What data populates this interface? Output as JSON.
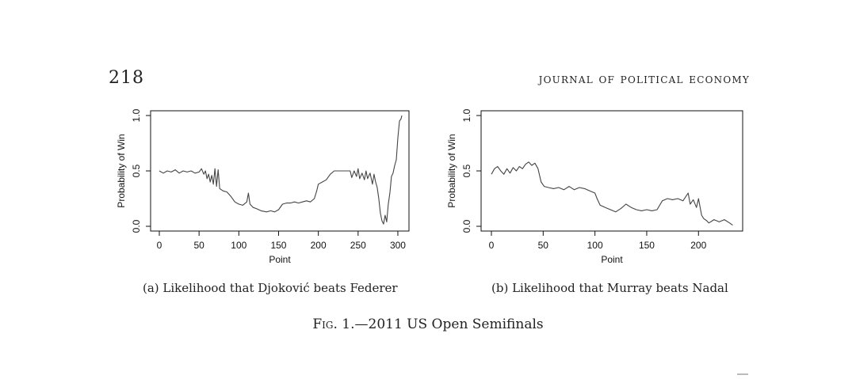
{
  "header": {
    "page_number": "218",
    "journal": "JOURNAL OF POLITICAL ECONOMY"
  },
  "figure": {
    "prefix": "Fig.",
    "suffix": " 1.—2011 US Open Semifinals"
  },
  "chart_data": [
    {
      "type": "line",
      "caption": "(a) Likelihood that Djoković beats Federer",
      "xlabel": "Point",
      "ylabel": "Probability of Win",
      "xlim": [
        0,
        310
      ],
      "ylim": [
        0,
        1
      ],
      "xticks": [
        0,
        50,
        100,
        150,
        200,
        250,
        300
      ],
      "yticks": [
        0.0,
        0.5,
        1.0
      ],
      "xtick_labels": [
        "0",
        "50",
        "100",
        "150",
        "200",
        "250",
        "300"
      ],
      "ytick_labels": [
        "0.0",
        "0.5",
        "1.0"
      ],
      "series": [
        {
          "x": [
            0,
            5,
            10,
            15,
            20,
            25,
            30,
            35,
            40,
            45,
            50,
            53,
            56,
            58,
            60,
            62,
            64,
            66,
            68,
            70,
            72,
            74,
            76,
            78,
            80,
            85,
            90,
            95,
            100,
            105,
            110,
            112,
            114,
            118,
            122,
            128,
            135,
            140,
            145,
            150,
            155,
            160,
            165,
            170,
            175,
            180,
            185,
            190,
            195,
            198,
            200,
            205,
            210,
            215,
            220,
            225,
            230,
            235,
            240,
            242,
            245,
            248,
            250,
            252,
            255,
            258,
            260,
            262,
            265,
            268,
            270,
            272,
            274,
            276,
            278,
            280,
            282,
            284,
            286,
            288,
            290,
            292,
            294,
            296,
            298,
            300,
            302,
            304,
            305
          ],
          "y": [
            0.5,
            0.48,
            0.5,
            0.49,
            0.51,
            0.48,
            0.5,
            0.49,
            0.5,
            0.48,
            0.49,
            0.52,
            0.47,
            0.5,
            0.43,
            0.47,
            0.4,
            0.46,
            0.38,
            0.52,
            0.36,
            0.51,
            0.34,
            0.33,
            0.32,
            0.31,
            0.27,
            0.22,
            0.2,
            0.19,
            0.22,
            0.3,
            0.2,
            0.17,
            0.16,
            0.14,
            0.13,
            0.14,
            0.13,
            0.15,
            0.2,
            0.21,
            0.21,
            0.22,
            0.21,
            0.22,
            0.23,
            0.22,
            0.25,
            0.32,
            0.38,
            0.4,
            0.42,
            0.47,
            0.5,
            0.5,
            0.5,
            0.5,
            0.5,
            0.44,
            0.5,
            0.45,
            0.52,
            0.43,
            0.48,
            0.42,
            0.5,
            0.43,
            0.48,
            0.38,
            0.47,
            0.4,
            0.35,
            0.25,
            0.12,
            0.05,
            0.02,
            0.1,
            0.04,
            0.2,
            0.3,
            0.45,
            0.48,
            0.55,
            0.6,
            0.8,
            0.95,
            0.97,
            1.0
          ]
        }
      ]
    },
    {
      "type": "line",
      "caption": "(b) Likelihood that Murray beats Nadal",
      "xlabel": "Point",
      "ylabel": "Probability of Win",
      "xlim": [
        0,
        235
      ],
      "ylim": [
        0,
        1
      ],
      "xticks": [
        0,
        50,
        100,
        150,
        200
      ],
      "yticks": [
        0.0,
        0.5,
        1.0
      ],
      "xtick_labels": [
        "0",
        "50",
        "100",
        "150",
        "200"
      ],
      "ytick_labels": [
        "0.0",
        "0.5",
        "1.0"
      ],
      "series": [
        {
          "x": [
            0,
            3,
            6,
            9,
            12,
            15,
            18,
            21,
            24,
            27,
            30,
            33,
            36,
            39,
            42,
            45,
            48,
            51,
            55,
            60,
            65,
            70,
            75,
            80,
            85,
            90,
            95,
            100,
            102,
            105,
            110,
            115,
            120,
            125,
            130,
            135,
            140,
            145,
            150,
            155,
            160,
            165,
            170,
            175,
            180,
            185,
            190,
            192,
            195,
            198,
            200,
            203,
            205,
            208,
            210,
            215,
            220,
            225,
            230,
            233
          ],
          "y": [
            0.47,
            0.52,
            0.54,
            0.5,
            0.47,
            0.52,
            0.48,
            0.53,
            0.5,
            0.54,
            0.52,
            0.56,
            0.58,
            0.55,
            0.57,
            0.52,
            0.4,
            0.36,
            0.35,
            0.34,
            0.35,
            0.33,
            0.36,
            0.33,
            0.35,
            0.34,
            0.32,
            0.3,
            0.25,
            0.19,
            0.17,
            0.15,
            0.13,
            0.16,
            0.2,
            0.17,
            0.15,
            0.14,
            0.15,
            0.14,
            0.15,
            0.23,
            0.25,
            0.24,
            0.25,
            0.23,
            0.3,
            0.2,
            0.24,
            0.17,
            0.25,
            0.1,
            0.07,
            0.05,
            0.03,
            0.06,
            0.04,
            0.06,
            0.03,
            0.01
          ]
        }
      ]
    }
  ]
}
